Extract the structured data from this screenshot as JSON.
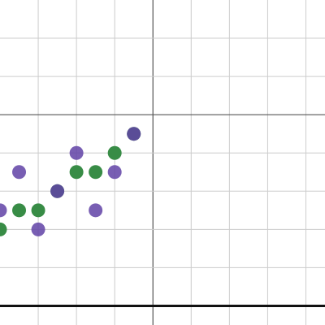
{
  "chart_data": {
    "type": "scatter",
    "xlim": [
      -8,
      9
    ],
    "ylim": [
      -11,
      6
    ],
    "xticks": [
      -6,
      -4,
      -2,
      0,
      2,
      4,
      6,
      8
    ],
    "yticks": [
      4,
      2,
      0,
      -2,
      -4,
      -6,
      -8,
      -10
    ],
    "grid": true,
    "hline": -10,
    "series": [
      {
        "color": "#388c46",
        "x": [
          -2,
          -4,
          -3,
          -7,
          -6,
          -8,
          -1,
          -5
        ],
        "y": [
          -2,
          -3,
          -3,
          -5,
          -5,
          -6,
          -1,
          -4
        ]
      },
      {
        "color": "#6042a6",
        "x": [
          -1,
          -4,
          -7,
          -2,
          -5,
          -8,
          -3,
          -6
        ],
        "y": [
          -1,
          -2,
          -3,
          -3,
          -4,
          -5,
          -5,
          -6
        ]
      }
    ]
  }
}
